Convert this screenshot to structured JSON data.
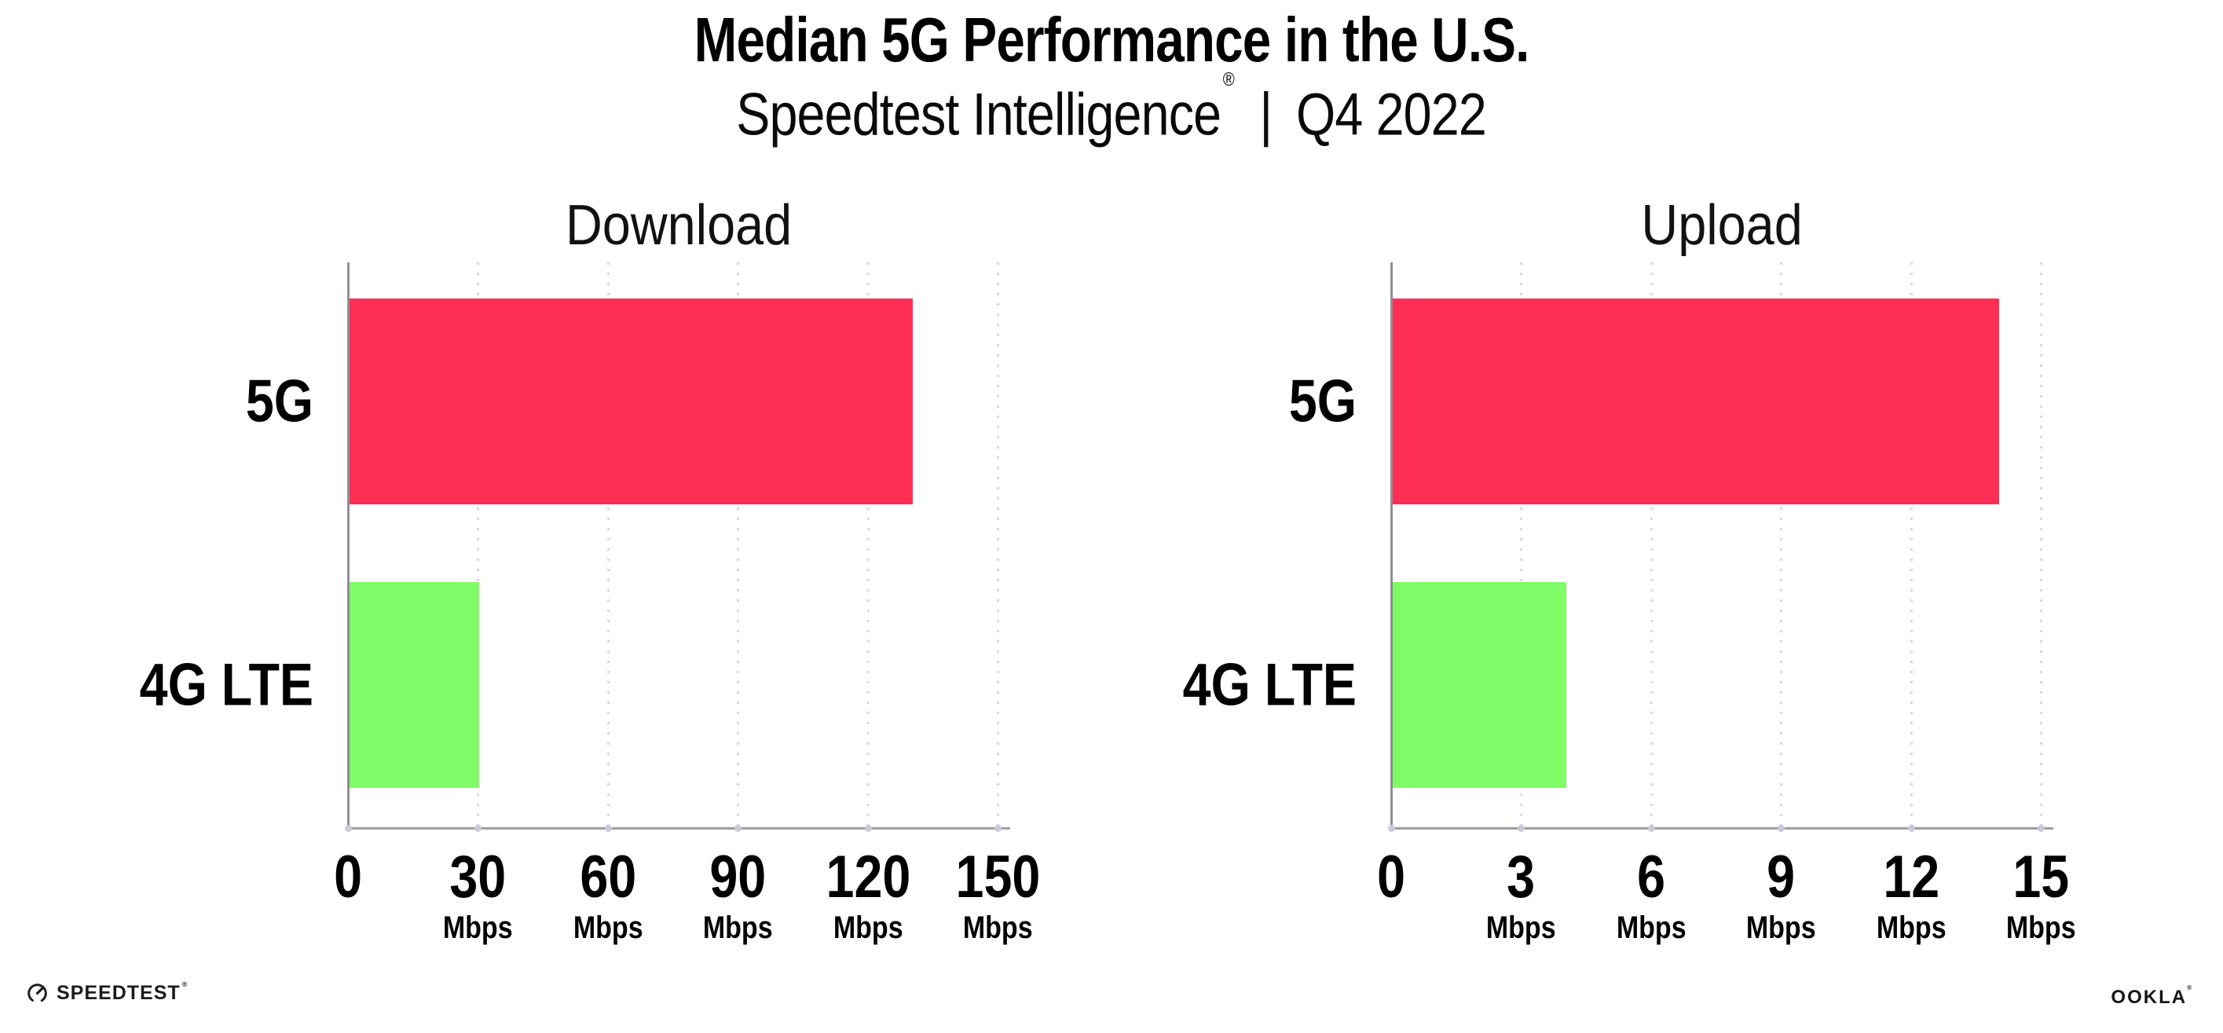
{
  "header": {
    "title": "Median 5G Performance in the U.S.",
    "subtitle_brand": "Speedtest Intelligence",
    "subtitle_reg": "®",
    "subtitle_separator": "|",
    "subtitle_period": "Q4 2022"
  },
  "footer": {
    "speedtest_label": "SPEEDTEST",
    "speedtest_reg": "®",
    "ookla_label": "OOKLA",
    "ookla_reg": "®"
  },
  "colors": {
    "bar_5g": "#ff2e54",
    "bar_4g_lte": "#7efb66",
    "gridline": "#d8d8e2",
    "x_axis": "#9d9da3",
    "y_axis": "#8f8f96",
    "axis_tick_dot": "#c9c9d8",
    "text": "#000000"
  },
  "chart_data": [
    {
      "type": "bar",
      "orientation": "horizontal",
      "title": "Download",
      "categories": [
        "5G",
        "4G LTE"
      ],
      "values": [
        130,
        30
      ],
      "unit": "Mbps",
      "xticks": [
        0,
        30,
        60,
        90,
        120,
        150
      ],
      "xlim": [
        0,
        150
      ],
      "grid": "dotted-vertical",
      "legend": "none",
      "bar_colors": [
        "#ff2e54",
        "#7efb66"
      ]
    },
    {
      "type": "bar",
      "orientation": "horizontal",
      "title": "Upload",
      "categories": [
        "5G",
        "4G LTE"
      ],
      "values": [
        14,
        4
      ],
      "unit": "Mbps",
      "xticks": [
        0,
        3,
        6,
        9,
        12,
        15
      ],
      "xlim": [
        0,
        15
      ],
      "grid": "dotted-vertical",
      "legend": "none",
      "bar_colors": [
        "#ff2e54",
        "#7efb66"
      ]
    }
  ]
}
